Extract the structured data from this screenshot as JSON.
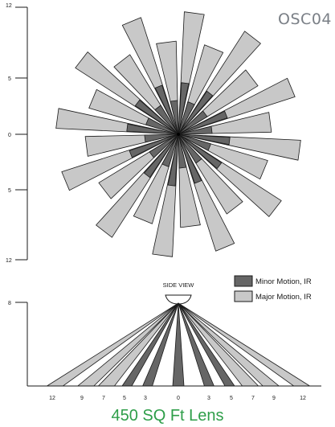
{
  "model_label": "OSC04",
  "caption": "450 SQ Ft Lens",
  "top_view": {
    "y_axis_ticks": [
      "12",
      "5",
      "0",
      "5",
      "12"
    ],
    "ray_count": 24,
    "major_lengths_ft": [
      11.6,
      8.8
    ],
    "minor_lengths_ft": [
      4.9,
      3.2
    ]
  },
  "side_view": {
    "label": "SIDE VIEW",
    "y_axis_ticks": [
      "8"
    ],
    "x_axis_ticks": [
      "12",
      "9",
      "7",
      "5",
      "3",
      "0",
      "3",
      "5",
      "7",
      "9",
      "12"
    ],
    "major_spread_ft": [
      12,
      9,
      7
    ],
    "minor_spread_ft": [
      5,
      3,
      0
    ]
  },
  "legend": [
    {
      "label": "Minor Motion, IR",
      "color": "#666666"
    },
    {
      "label": "Major Motion, IR",
      "color": "#c8c8c8"
    }
  ],
  "colors": {
    "major": "#c8c8c8",
    "minor": "#666666",
    "outline": "#1a1a1a",
    "caption": "#2e9e49"
  }
}
